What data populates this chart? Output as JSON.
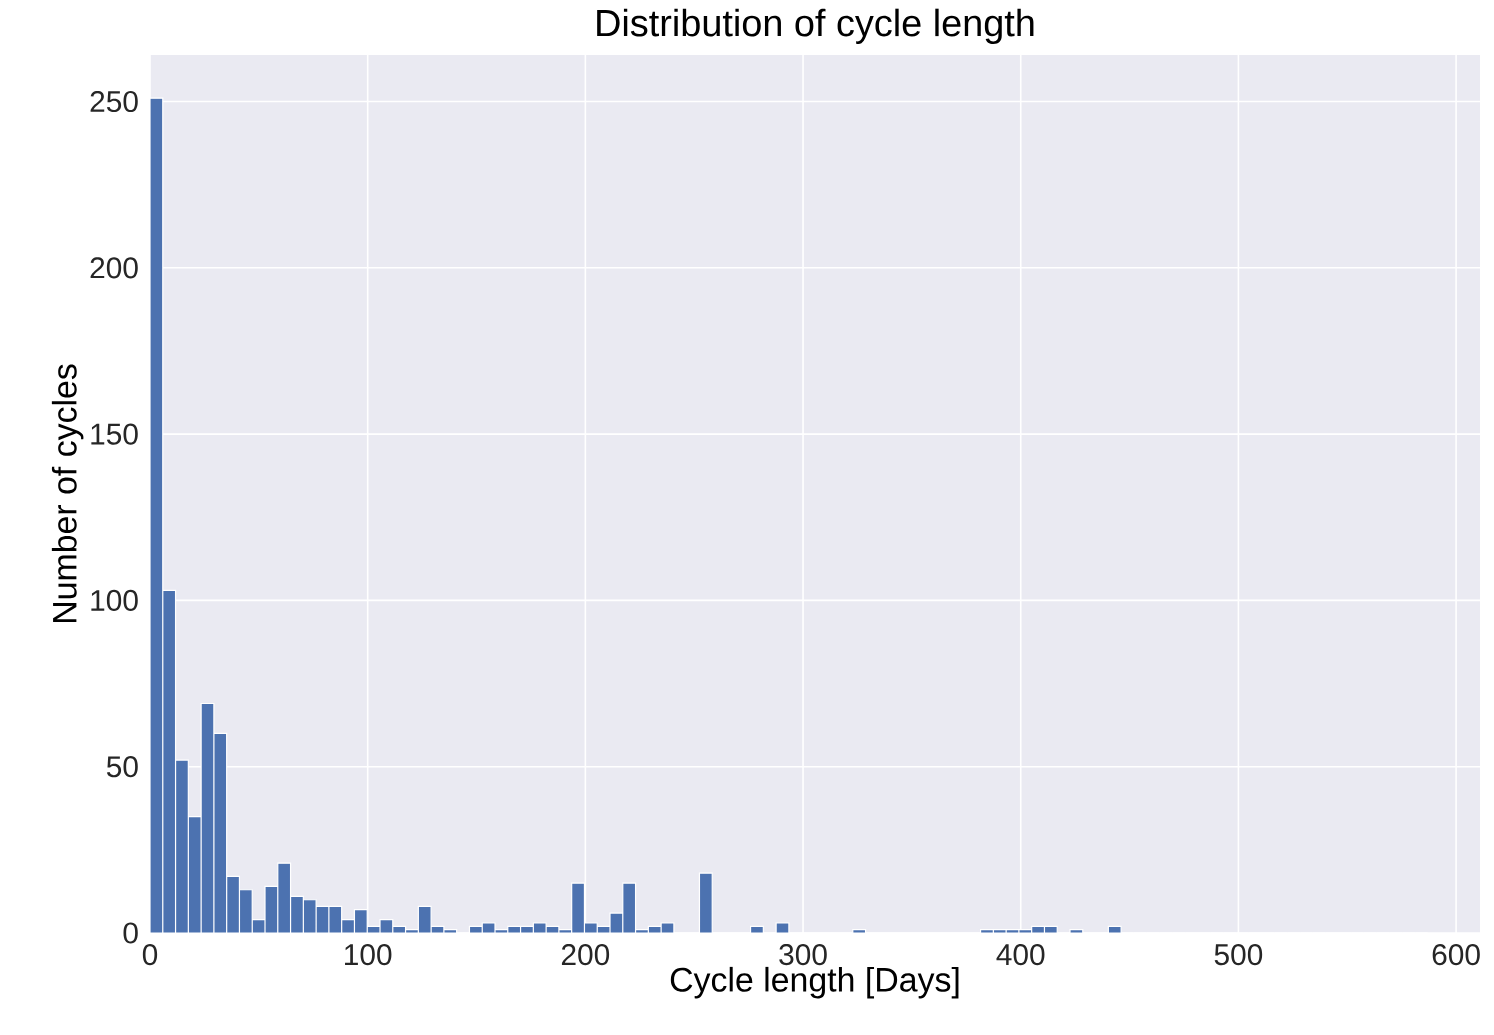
{
  "chart_data": {
    "type": "histogram",
    "title": "Distribution of cycle length",
    "xlabel": "Cycle length [Days]",
    "ylabel": "Number of cycles",
    "bins": [
      0,
      5.87,
      11.74,
      17.61,
      23.48,
      29.35,
      35.22,
      41.09,
      46.96,
      52.83,
      58.7,
      64.57,
      70.44,
      76.31,
      82.18,
      88.05,
      93.92,
      99.79,
      105.66,
      111.53,
      117.4,
      123.27,
      129.14,
      135.01,
      140.88,
      146.75,
      152.62,
      158.49,
      164.36,
      170.23,
      176.1,
      181.97,
      187.84,
      193.71,
      199.58,
      205.45,
      211.32,
      217.19,
      223.06,
      228.93,
      234.8,
      240.67,
      246.54,
      252.41,
      258.28,
      264.15,
      270.02,
      275.89,
      281.76,
      287.63,
      293.5,
      299.37,
      305.24,
      311.11,
      316.98,
      322.85,
      328.72,
      334.59,
      340.46,
      346.33,
      352.2,
      358.07,
      363.94,
      369.81,
      375.68,
      381.55,
      387.42,
      393.29,
      399.16,
      405.03,
      410.9,
      416.77,
      422.64,
      428.51,
      434.38,
      440.25,
      446.12,
      451.99,
      457.86,
      463.73,
      469.6,
      475.47,
      481.34,
      487.21,
      493.08,
      498.95,
      504.82,
      510.69,
      516.56,
      522.43,
      528.3,
      534.17,
      540.04,
      545.91,
      551.78,
      557.65,
      563.52,
      569.39,
      575.26,
      581.13,
      587.0
    ],
    "values": [
      251,
      103,
      52,
      35,
      69,
      60,
      17,
      13,
      4,
      14,
      21,
      11,
      10,
      8,
      8,
      4,
      7,
      2,
      4,
      2,
      1,
      8,
      2,
      1,
      0,
      2,
      3,
      1,
      2,
      2,
      3,
      2,
      1,
      15,
      3,
      2,
      6,
      15,
      1,
      2,
      3,
      0,
      0,
      18,
      0,
      0,
      0,
      2,
      0,
      3,
      0,
      0,
      0,
      0,
      0,
      1,
      0,
      0,
      0,
      0,
      0,
      0,
      0,
      0,
      0,
      1,
      1,
      1,
      1,
      2,
      2,
      0,
      1,
      0,
      0,
      2,
      0,
      0,
      0,
      0,
      0,
      0,
      0,
      0,
      0,
      0,
      0,
      0,
      0,
      0,
      0,
      0,
      0,
      0,
      0,
      0,
      0,
      0,
      0,
      0
    ],
    "color": "#4c72b0",
    "xlim": [
      0,
      611
    ],
    "ylim": [
      0,
      264
    ],
    "xticks": [
      0,
      100,
      200,
      300,
      400,
      500,
      600
    ],
    "yticks": [
      0,
      50,
      100,
      150,
      200,
      250
    ],
    "grid": true
  }
}
